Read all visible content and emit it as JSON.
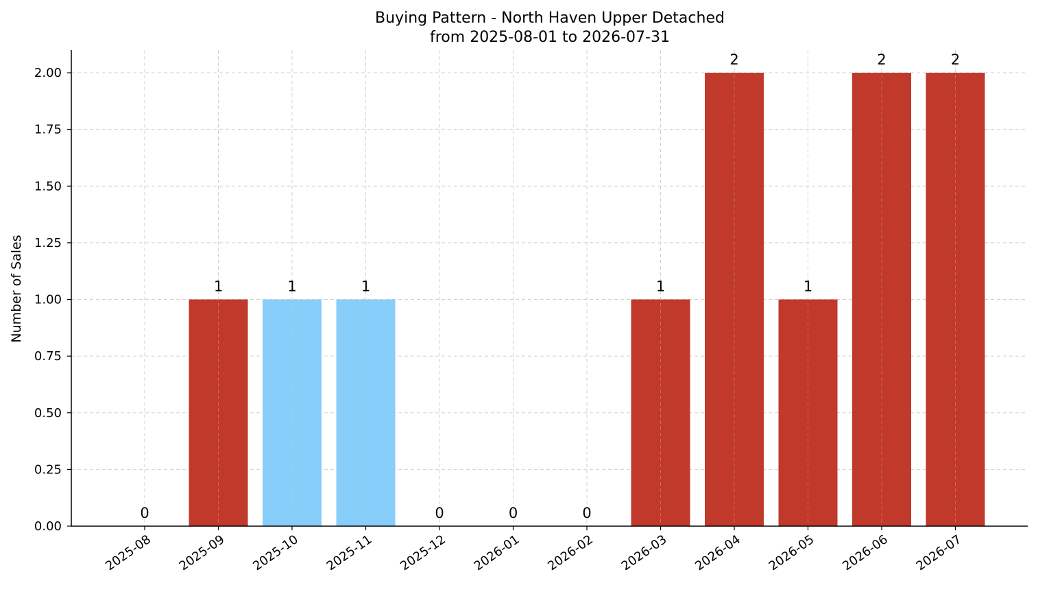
{
  "chart_data": {
    "type": "bar",
    "title_lines": [
      "Buying Pattern - North Haven Upper Detached",
      "from 2025-08-01 to 2026-07-31"
    ],
    "xlabel": "",
    "ylabel": "Number of Sales",
    "ylim": [
      0,
      2.1
    ],
    "yticks": [
      "0.00",
      "0.25",
      "0.50",
      "0.75",
      "1.00",
      "1.25",
      "1.50",
      "1.75",
      "2.00"
    ],
    "grid": true,
    "categories": [
      "2025-08",
      "2025-09",
      "2025-10",
      "2025-11",
      "2025-12",
      "2026-01",
      "2026-02",
      "2026-03",
      "2026-04",
      "2026-05",
      "2026-06",
      "2026-07"
    ],
    "values": [
      0,
      1,
      1,
      1,
      0,
      0,
      0,
      1,
      2,
      1,
      2,
      2
    ],
    "value_labels": [
      "0",
      "1",
      "1",
      "1",
      "0",
      "0",
      "0",
      "1",
      "2",
      "1",
      "2",
      "2"
    ],
    "bar_colors": [
      "#c0392b",
      "#c0392b",
      "#87cefa",
      "#87cefa",
      "#c0392b",
      "#c0392b",
      "#c0392b",
      "#c0392b",
      "#c0392b",
      "#c0392b",
      "#c0392b",
      "#c0392b"
    ]
  }
}
